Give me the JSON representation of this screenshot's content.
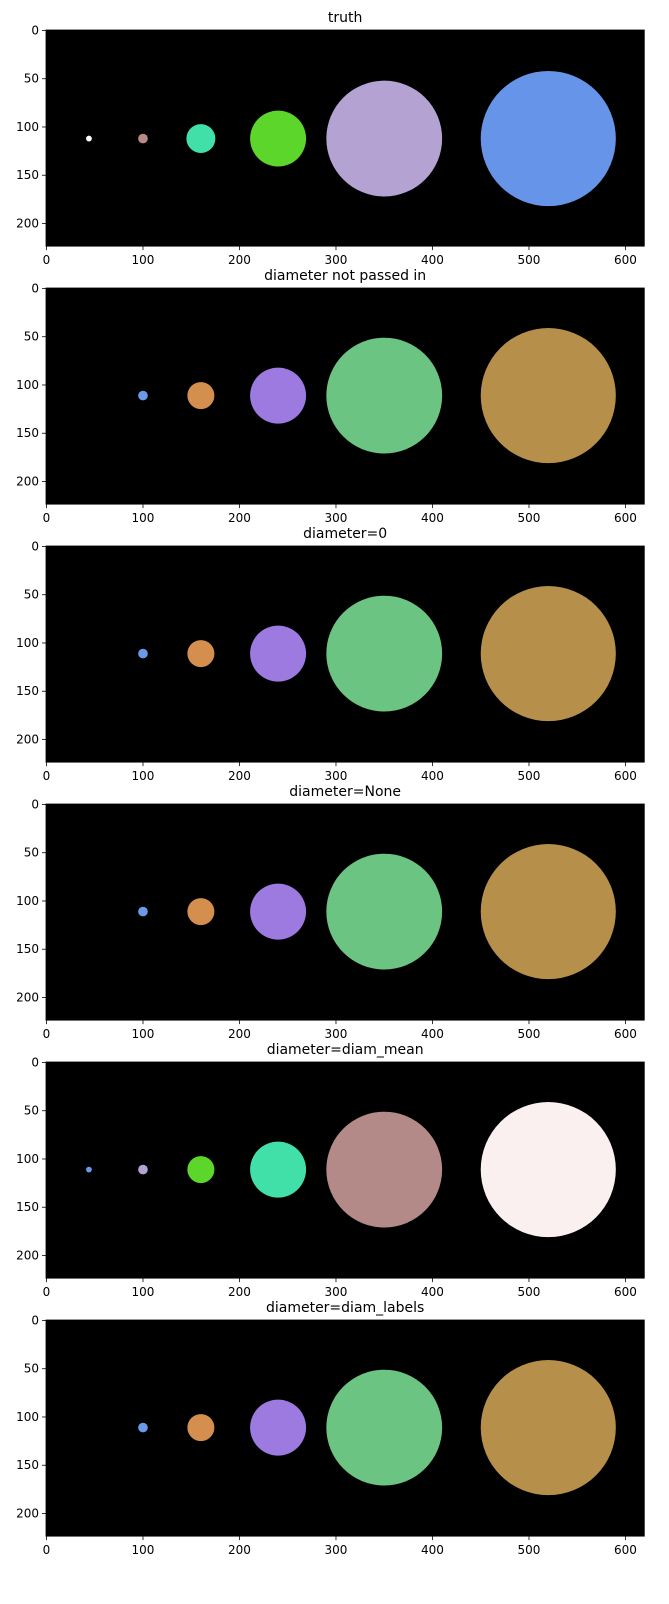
{
  "chart_data": [
    {
      "type": "heatmap",
      "title": "truth",
      "xlim": [
        0,
        620
      ],
      "ylim": [
        224,
        0
      ],
      "xticks": [
        0,
        100,
        200,
        300,
        400,
        500,
        600
      ],
      "yticks": [
        0,
        50,
        100,
        150,
        200
      ],
      "background": "#000000",
      "objects": [
        {
          "x": 44,
          "y": 112,
          "r": 3,
          "color": "#ffffff"
        },
        {
          "x": 100,
          "y": 112,
          "r": 5,
          "color": "#b88a8a"
        },
        {
          "x": 160,
          "y": 112,
          "r": 15,
          "color": "#40e0a8"
        },
        {
          "x": 240,
          "y": 112,
          "r": 29,
          "color": "#5cd62b"
        },
        {
          "x": 350,
          "y": 112,
          "r": 60,
          "color": "#b4a2d2"
        },
        {
          "x": 520,
          "y": 112,
          "r": 70,
          "color": "#6694e8"
        }
      ]
    },
    {
      "type": "heatmap",
      "title": "diameter not passed in",
      "xlim": [
        0,
        620
      ],
      "ylim": [
        224,
        0
      ],
      "xticks": [
        0,
        100,
        200,
        300,
        400,
        500,
        600
      ],
      "yticks": [
        0,
        50,
        100,
        150,
        200
      ],
      "background": "#000000",
      "objects": [
        {
          "x": 100,
          "y": 111,
          "r": 5,
          "color": "#6a9ae8"
        },
        {
          "x": 160,
          "y": 111,
          "r": 14,
          "color": "#d48f4e"
        },
        {
          "x": 240,
          "y": 111,
          "r": 29,
          "color": "#9d7ae0"
        },
        {
          "x": 350,
          "y": 111,
          "r": 60,
          "color": "#6cc482"
        },
        {
          "x": 520,
          "y": 111,
          "r": 70,
          "color": "#b6904a"
        }
      ]
    },
    {
      "type": "heatmap",
      "title": "diameter=0",
      "xlim": [
        0,
        620
      ],
      "ylim": [
        224,
        0
      ],
      "xticks": [
        0,
        100,
        200,
        300,
        400,
        500,
        600
      ],
      "yticks": [
        0,
        50,
        100,
        150,
        200
      ],
      "background": "#000000",
      "objects": [
        {
          "x": 100,
          "y": 111,
          "r": 5,
          "color": "#6a9ae8"
        },
        {
          "x": 160,
          "y": 111,
          "r": 14,
          "color": "#d48f4e"
        },
        {
          "x": 240,
          "y": 111,
          "r": 29,
          "color": "#9d7ae0"
        },
        {
          "x": 350,
          "y": 111,
          "r": 60,
          "color": "#6cc482"
        },
        {
          "x": 520,
          "y": 111,
          "r": 70,
          "color": "#b6904a"
        }
      ]
    },
    {
      "type": "heatmap",
      "title": "diameter=None",
      "xlim": [
        0,
        620
      ],
      "ylim": [
        224,
        0
      ],
      "xticks": [
        0,
        100,
        200,
        300,
        400,
        500,
        600
      ],
      "yticks": [
        0,
        50,
        100,
        150,
        200
      ],
      "background": "#000000",
      "objects": [
        {
          "x": 100,
          "y": 111,
          "r": 5,
          "color": "#6a9ae8"
        },
        {
          "x": 160,
          "y": 111,
          "r": 14,
          "color": "#d48f4e"
        },
        {
          "x": 240,
          "y": 111,
          "r": 29,
          "color": "#9d7ae0"
        },
        {
          "x": 350,
          "y": 111,
          "r": 60,
          "color": "#6cc482"
        },
        {
          "x": 520,
          "y": 111,
          "r": 70,
          "color": "#b6904a"
        }
      ]
    },
    {
      "type": "heatmap",
      "title": "diameter=diam_mean",
      "xlim": [
        0,
        620
      ],
      "ylim": [
        224,
        0
      ],
      "xticks": [
        0,
        100,
        200,
        300,
        400,
        500,
        600
      ],
      "yticks": [
        0,
        50,
        100,
        150,
        200
      ],
      "background": "#000000",
      "objects": [
        {
          "x": 44,
          "y": 111,
          "r": 3,
          "color": "#6a9ae8"
        },
        {
          "x": 100,
          "y": 111,
          "r": 5,
          "color": "#b4a2d2"
        },
        {
          "x": 160,
          "y": 111,
          "r": 14,
          "color": "#5cd62b"
        },
        {
          "x": 240,
          "y": 111,
          "r": 29,
          "color": "#40e0a8"
        },
        {
          "x": 350,
          "y": 111,
          "r": 60,
          "color": "#b48a88"
        },
        {
          "x": 520,
          "y": 111,
          "r": 70,
          "color": "#faf0f0"
        }
      ]
    },
    {
      "type": "heatmap",
      "title": "diameter=diam_labels",
      "xlim": [
        0,
        620
      ],
      "ylim": [
        224,
        0
      ],
      "xticks": [
        0,
        100,
        200,
        300,
        400,
        500,
        600
      ],
      "yticks": [
        0,
        50,
        100,
        150,
        200
      ],
      "background": "#000000",
      "objects": [
        {
          "x": 100,
          "y": 111,
          "r": 5,
          "color": "#6a9ae8"
        },
        {
          "x": 160,
          "y": 111,
          "r": 14,
          "color": "#d48f4e"
        },
        {
          "x": 240,
          "y": 111,
          "r": 29,
          "color": "#9d7ae0"
        },
        {
          "x": 350,
          "y": 111,
          "r": 60,
          "color": "#6cc482"
        },
        {
          "x": 520,
          "y": 111,
          "r": 70,
          "color": "#b6904a"
        }
      ]
    }
  ]
}
